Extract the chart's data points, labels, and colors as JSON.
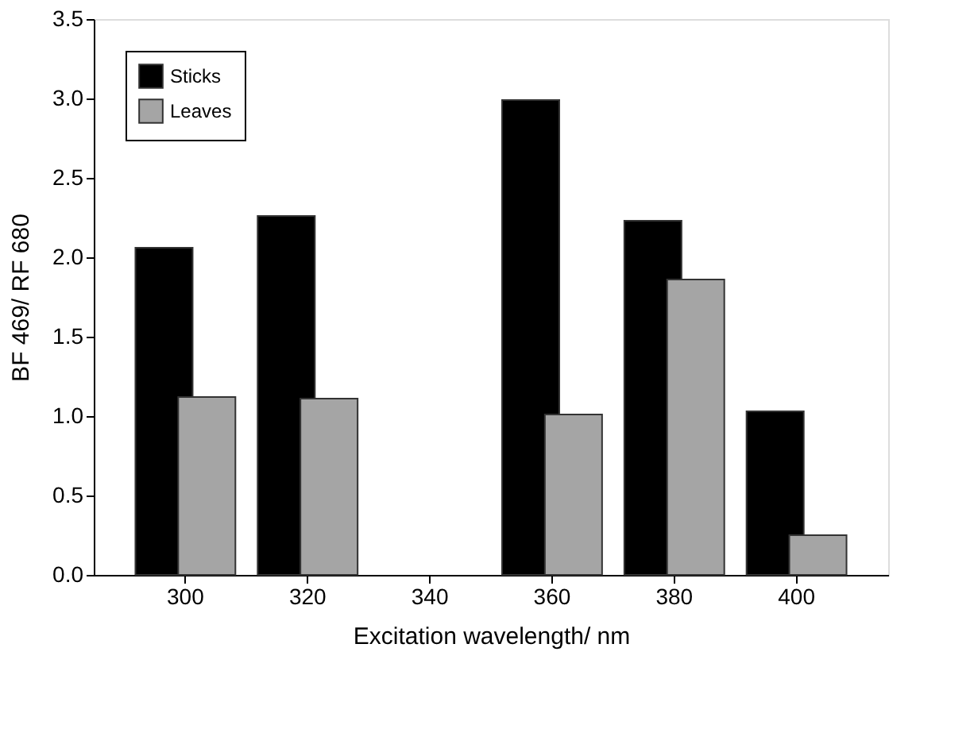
{
  "chart_data": {
    "type": "bar",
    "xlabel": "Excitation wavelength/ nm",
    "ylabel": "BF 469/ RF 680",
    "categories": [
      "300",
      "320",
      "340",
      "360",
      "380",
      "400"
    ],
    "series": [
      {
        "name": "Sticks",
        "color": "#000000",
        "values": [
          2.06,
          2.26,
          null,
          2.99,
          2.23,
          1.03
        ]
      },
      {
        "name": "Leaves",
        "color": "#a5a5a5",
        "values": [
          1.12,
          1.11,
          null,
          1.01,
          1.86,
          0.25
        ]
      }
    ],
    "ylim": [
      0,
      3.5
    ],
    "yticks": [
      {
        "value": 0,
        "label": "0.0"
      },
      {
        "value": 0.5,
        "label": "0.5"
      },
      {
        "value": 1,
        "label": "1.0"
      },
      {
        "value": 1.5,
        "label": "1.5"
      },
      {
        "value": 2,
        "label": "2.0"
      },
      {
        "value": 2.5,
        "label": "2.5"
      },
      {
        "value": 3,
        "label": "3.0"
      },
      {
        "value": 3.5,
        "label": "3.5"
      }
    ],
    "legend": "top left",
    "grid": false
  }
}
